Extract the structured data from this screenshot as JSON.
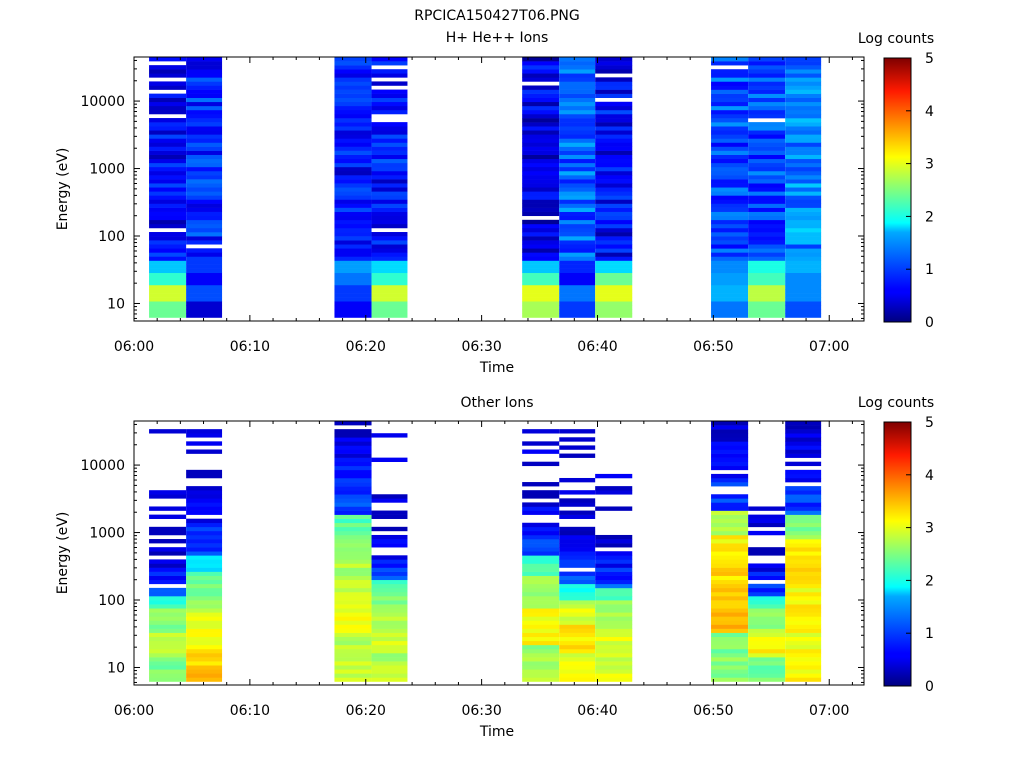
{
  "figure_title": "RPCICA150427T06.PNG",
  "chart_data": [
    {
      "type": "heatmap",
      "title": "H+ He++ Ions",
      "xlabel": "Time",
      "ylabel": "Energy (eV)",
      "x_ticks": [
        "06:00",
        "06:10",
        "06:20",
        "06:30",
        "06:40",
        "06:50",
        "07:00"
      ],
      "xlim": [
        "06:00",
        "07:03"
      ],
      "y_scale": "log",
      "y_ticks": [
        10,
        100,
        1000,
        10000
      ],
      "y_tick_labels": [
        "10",
        "100",
        "1000",
        "10000"
      ],
      "ylim": [
        5.5,
        45000
      ],
      "colorbar_label": "Log counts",
      "colorbar_ticks": [
        "0",
        "1",
        "2",
        "3",
        "4",
        "5"
      ],
      "zlim": [
        0,
        5
      ],
      "colormap": "jet",
      "time_blocks": [
        {
          "start": "06:01.3",
          "end": "06:04.5",
          "low_energy_log_counts": [
            2.4,
            2.9,
            2.1,
            1.6
          ],
          "high_energy_log_counts": 0.6,
          "gaps_eV": [
            35000,
            22000,
            14000,
            6300,
            120
          ]
        },
        {
          "start": "06:04.5",
          "end": "06:07.6",
          "low_energy_log_counts": [
            0.4,
            1.0,
            0.6,
            0.9
          ],
          "high_energy_log_counts": 0.8,
          "gaps_eV": [
            68
          ]
        },
        {
          "start": "06:17.3",
          "end": "06:20.5",
          "low_energy_log_counts": [
            0.6,
            0.9,
            1.2,
            1.4
          ],
          "high_energy_log_counts": 0.7,
          "gaps_eV": []
        },
        {
          "start": "06:20.5",
          "end": "06:23.6",
          "low_energy_log_counts": [
            2.4,
            2.9,
            2.1,
            1.7
          ],
          "high_energy_log_counts": 0.7,
          "gaps_eV": [
            30000,
            21000,
            15000,
            6200,
            5200,
            130
          ]
        },
        {
          "start": "06:33.5",
          "end": "06:36.7",
          "low_energy_log_counts": [
            2.7,
            3.0,
            2.2,
            1.6
          ],
          "high_energy_log_counts": 0.5,
          "gaps_eV": [
            18000,
            190
          ]
        },
        {
          "start": "06:36.7",
          "end": "06:39.8",
          "low_energy_log_counts": [
            0.9,
            1.2,
            0.6,
            0.8
          ],
          "high_energy_log_counts": 1.1,
          "gaps_eV": []
        },
        {
          "start": "06:39.8",
          "end": "06:43.0",
          "low_energy_log_counts": [
            2.6,
            3.0,
            2.4,
            1.7
          ],
          "high_energy_log_counts": 0.6,
          "gaps_eV": [
            23000,
            10500
          ]
        },
        {
          "start": "06:49.8",
          "end": "06:53.0",
          "low_energy_log_counts": [
            1.2,
            1.5,
            1.4,
            1.3
          ],
          "high_energy_log_counts": 1.0,
          "gaps_eV": [
            33000
          ]
        },
        {
          "start": "06:53.0",
          "end": "06:56.2",
          "low_energy_log_counts": [
            2.4,
            2.8,
            2.2,
            2.0
          ],
          "high_energy_log_counts": 1.0,
          "gaps_eV": [
            5400
          ]
        },
        {
          "start": "06:56.2",
          "end": "06:59.3",
          "low_energy_log_counts": [
            1.0,
            1.3,
            1.3,
            1.5
          ],
          "high_energy_log_counts": 1.3,
          "gaps_eV": []
        }
      ]
    },
    {
      "type": "heatmap",
      "title": "Other Ions",
      "xlabel": "Time",
      "ylabel": "Energy (eV)",
      "x_ticks": [
        "06:00",
        "06:10",
        "06:20",
        "06:30",
        "06:40",
        "06:50",
        "07:00"
      ],
      "xlim": [
        "06:00",
        "07:03"
      ],
      "y_scale": "log",
      "y_ticks": [
        10,
        100,
        1000,
        10000
      ],
      "y_tick_labels": [
        "10",
        "100",
        "1000",
        "10000"
      ],
      "ylim": [
        5.5,
        45000
      ],
      "colorbar_label": "Log counts",
      "colorbar_ticks": [
        "0",
        "1",
        "2",
        "3",
        "4",
        "5"
      ],
      "zlim": [
        0,
        5
      ],
      "colormap": "jet",
      "time_blocks": [
        {
          "start": "06:01.3",
          "end": "06:04.5",
          "spectrum_log_counts": [
            2.5,
            3.0,
            2.9,
            2.5,
            2.2,
            1.8
          ],
          "dense_top_eV": 600,
          "sparse_lines_eV": [
            33000,
            4000,
            3500,
            2200,
            1800
          ]
        },
        {
          "start": "06:04.5",
          "end": "06:07.6",
          "spectrum_log_counts": [
            3.4,
            3.2,
            2.8,
            2.3,
            1.9,
            1.7
          ],
          "dense_top_eV": 5000,
          "sparse_lines_eV": [
            34000,
            29000,
            21000,
            15000
          ]
        },
        {
          "start": "06:17.3",
          "end": "06:20.5",
          "spectrum_log_counts": [
            2.9,
            3.2,
            3.1,
            2.8,
            2.5,
            2.1
          ],
          "dense_top_eV": 40000,
          "sparse_lines_eV": []
        },
        {
          "start": "06:20.5",
          "end": "06:23.6",
          "spectrum_log_counts": [
            2.9,
            3.1,
            3.0,
            2.7,
            2.2,
            1.7
          ],
          "dense_top_eV": 1200,
          "sparse_lines_eV": [
            26000,
            12000,
            3000,
            2000
          ]
        },
        {
          "start": "06:33.5",
          "end": "06:36.7",
          "spectrum_log_counts": [
            2.8,
            3.4,
            3.0,
            2.6,
            2.1,
            1.6
          ],
          "dense_top_eV": 4500,
          "sparse_lines_eV": [
            34000,
            22000,
            16000,
            11000
          ]
        },
        {
          "start": "06:36.7",
          "end": "06:39.8",
          "spectrum_log_counts": [
            3.1,
            3.5,
            3.3,
            2.5,
            2.2,
            1.7
          ],
          "dense_top_eV": 1000,
          "sparse_lines_eV": [
            31000,
            25000,
            18000,
            13000,
            6000,
            4000,
            2500,
            1700
          ]
        },
        {
          "start": "06:39.8",
          "end": "06:43.0",
          "spectrum_log_counts": [
            3.0,
            3.2,
            3.1,
            2.6,
            2.2,
            1.6
          ],
          "dense_top_eV": 900,
          "sparse_lines_eV": [
            6500,
            4800,
            4000
          ]
        },
        {
          "start": "06:49.8",
          "end": "06:53.0",
          "spectrum_log_counts": [
            2.6,
            3.7,
            3.6,
            3.2,
            2.4,
            1.8
          ],
          "dense_top_eV": 45000,
          "sparse_lines_eV": []
        },
        {
          "start": "06:53.0",
          "end": "06:56.2",
          "spectrum_log_counts": [
            2.5,
            3.3,
            3.0,
            2.5,
            2.0,
            1.5
          ],
          "dense_top_eV": 600,
          "sparse_lines_eV": [
            2200,
            1800,
            1400,
            1000
          ]
        },
        {
          "start": "06:56.2",
          "end": "06:59.3",
          "spectrum_log_counts": [
            3.2,
            3.4,
            3.6,
            3.0,
            2.5,
            2.0
          ],
          "dense_top_eV": 40000,
          "sparse_lines_eV": []
        }
      ]
    }
  ]
}
